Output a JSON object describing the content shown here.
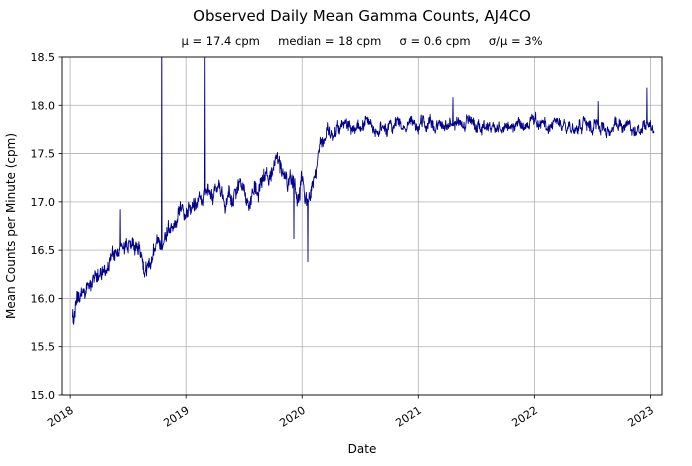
{
  "chart_data": {
    "type": "line",
    "title": "Observed Daily Mean Gamma Counts, AJ4CO",
    "subtitle": "μ = 17.4 cpm     median = 18 cpm     σ = 0.6 cpm     σ/μ = 3%",
    "stats": {
      "mean_cpm": 17.4,
      "median_cpm": 18,
      "sigma_cpm": 0.6,
      "sigma_over_mu_pct": 3
    },
    "xlabel": "Date",
    "ylabel": "Mean Counts per Minute (cpm)",
    "xlim": [
      2017.93,
      2023.1
    ],
    "ylim": [
      15.0,
      18.5
    ],
    "xticks": [
      2018,
      2019,
      2020,
      2021,
      2022,
      2023
    ],
    "yticks": [
      15.0,
      15.5,
      16.0,
      16.5,
      17.0,
      17.5,
      18.0,
      18.5
    ],
    "grid": true,
    "grid_color": "#b0b0b0",
    "line_color": "#00008b",
    "background": "#ffffff",
    "series": [
      {
        "name": "daily mean gamma counts",
        "x_start": 2018.02,
        "x_end": 2023.03,
        "trend": [
          [
            2018.02,
            15.82
          ],
          [
            2018.05,
            15.9
          ],
          [
            2018.1,
            16.02
          ],
          [
            2018.16,
            16.12
          ],
          [
            2018.22,
            16.22
          ],
          [
            2018.3,
            16.33
          ],
          [
            2018.38,
            16.43
          ],
          [
            2018.46,
            16.52
          ],
          [
            2018.52,
            16.58
          ],
          [
            2018.58,
            16.5
          ],
          [
            2018.64,
            16.35
          ],
          [
            2018.7,
            16.38
          ],
          [
            2018.76,
            16.52
          ],
          [
            2018.82,
            16.7
          ],
          [
            2018.88,
            16.82
          ],
          [
            2018.95,
            16.93
          ],
          [
            2019.02,
            16.98
          ],
          [
            2019.1,
            17.03
          ],
          [
            2019.2,
            17.06
          ],
          [
            2019.28,
            17.08
          ],
          [
            2019.34,
            16.95
          ],
          [
            2019.42,
            17.12
          ],
          [
            2019.5,
            17.18
          ],
          [
            2019.58,
            17.08
          ],
          [
            2019.64,
            17.15
          ],
          [
            2019.72,
            17.24
          ],
          [
            2019.82,
            17.3
          ],
          [
            2019.9,
            17.25
          ],
          [
            2019.95,
            17.1
          ],
          [
            2020.0,
            17.26
          ],
          [
            2020.05,
            17.0
          ],
          [
            2020.1,
            17.22
          ],
          [
            2020.14,
            17.45
          ],
          [
            2020.18,
            17.62
          ],
          [
            2020.24,
            17.74
          ],
          [
            2020.4,
            17.77
          ],
          [
            2020.8,
            17.78
          ],
          [
            2021.2,
            17.8
          ],
          [
            2021.6,
            17.78
          ],
          [
            2022.0,
            17.8
          ],
          [
            2022.4,
            17.78
          ],
          [
            2022.8,
            17.8
          ],
          [
            2023.03,
            17.76
          ]
        ],
        "noise_level": [
          [
            2018.02,
            0.11
          ],
          [
            2018.5,
            0.1
          ],
          [
            2018.9,
            0.09
          ],
          [
            2019.3,
            0.1
          ],
          [
            2019.9,
            0.11
          ],
          [
            2020.1,
            0.1
          ],
          [
            2020.3,
            0.08
          ],
          [
            2021.0,
            0.075
          ],
          [
            2022.0,
            0.075
          ],
          [
            2023.03,
            0.08
          ]
        ],
        "spikes": [
          [
            2018.43,
            16.92
          ],
          [
            2018.79,
            18.95
          ],
          [
            2019.16,
            18.5
          ],
          [
            2019.93,
            16.62
          ],
          [
            2020.05,
            16.38
          ],
          [
            2021.3,
            18.08
          ],
          [
            2022.55,
            18.04
          ],
          [
            2022.97,
            18.18
          ]
        ]
      }
    ]
  }
}
